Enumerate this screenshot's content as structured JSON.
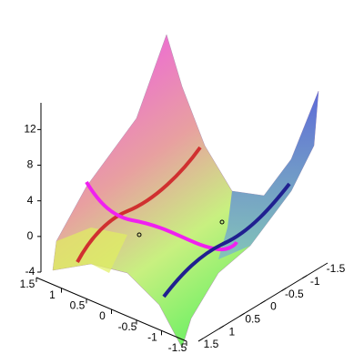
{
  "chart_data": {
    "type": "surface3d",
    "xlim": [
      1.5,
      -1.5
    ],
    "xticks": [
      1.5,
      1,
      0.5,
      0,
      -0.5,
      -1,
      -1.5
    ],
    "ylim": [
      -1.5,
      1.5
    ],
    "yticks": [
      -1.5,
      -1,
      -0.5,
      0,
      0.5,
      1,
      1.5
    ],
    "zlim": [
      -4,
      15
    ],
    "zticks": [
      -4,
      0,
      4,
      8,
      12
    ]
  }
}
